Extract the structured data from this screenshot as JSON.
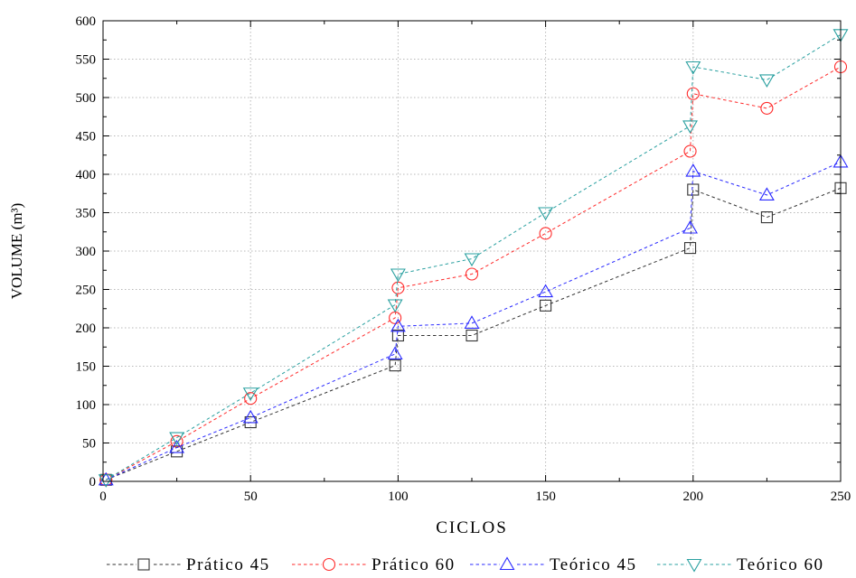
{
  "chart_data": {
    "type": "line",
    "xlabel": "CICLOS",
    "ylabel": "VOLUME (m³)",
    "xlim": [
      0,
      250
    ],
    "ylim": [
      0,
      600
    ],
    "xticks": [
      0,
      50,
      100,
      150,
      200,
      250
    ],
    "yticks": [
      0,
      50,
      100,
      150,
      200,
      250,
      300,
      350,
      400,
      450,
      500,
      550,
      600
    ],
    "grid": true,
    "legend_position": "bottom",
    "series": [
      {
        "name": "Prático 45",
        "color": "#333333",
        "marker": "square",
        "line_style": "dashed",
        "x": [
          1,
          25,
          50,
          99,
          100,
          125,
          150,
          199,
          200,
          225,
          250
        ],
        "y": [
          2,
          39,
          77,
          151,
          190,
          190,
          229,
          304,
          380,
          344,
          382
        ]
      },
      {
        "name": "Prático 60",
        "color": "#ff2a2a",
        "marker": "circle",
        "line_style": "dashed",
        "x": [
          1,
          25,
          50,
          99,
          100,
          125,
          150,
          199,
          200,
          225,
          250
        ],
        "y": [
          2,
          52,
          108,
          213,
          252,
          270,
          323,
          430,
          505,
          486,
          540
        ]
      },
      {
        "name": "Teórico 45",
        "color": "#2a2aff",
        "marker": "triangle-up",
        "line_style": "dashed",
        "x": [
          1,
          25,
          50,
          99,
          100,
          125,
          150,
          199,
          200,
          225,
          250
        ],
        "y": [
          2,
          44,
          83,
          166,
          202,
          206,
          247,
          330,
          404,
          373,
          416
        ]
      },
      {
        "name": "Teórico 60",
        "color": "#2aa0a0",
        "marker": "triangle-down",
        "line_style": "dashed",
        "x": [
          1,
          25,
          50,
          99,
          100,
          125,
          150,
          199,
          200,
          225,
          250
        ],
        "y": [
          2,
          57,
          115,
          230,
          270,
          290,
          350,
          463,
          540,
          523,
          582
        ]
      }
    ]
  }
}
